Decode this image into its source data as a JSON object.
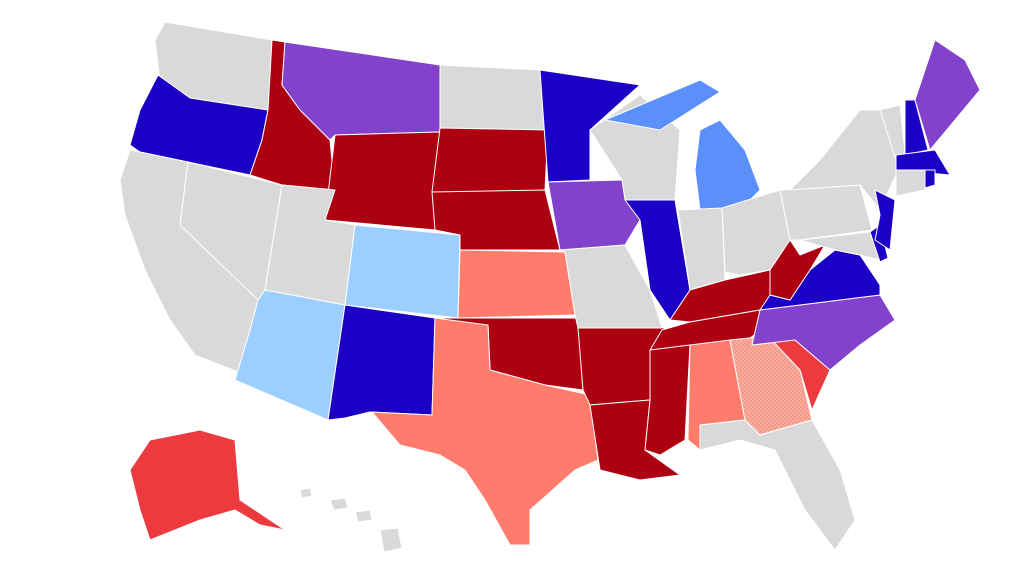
{
  "map": {
    "colors": {
      "gray": "#d9d9d9",
      "dark_blue": "#1c00c6",
      "medium_blue": "#5b8ff9",
      "light_blue": "#9ccfff",
      "purple": "#8342cc",
      "dark_red": "#ad0010",
      "red": "#ec3a3f",
      "salmon": "#ff7b6c",
      "salmon_dotted": "#f9a08f"
    },
    "states": {
      "WA": "gray",
      "OR": "dark_blue",
      "CA": "gray",
      "NV": "gray",
      "ID": "dark_red",
      "MT": "purple",
      "WY": "dark_red",
      "UT": "gray",
      "AZ": "light_blue",
      "CO": "light_blue",
      "NM": "dark_blue",
      "ND": "gray",
      "SD": "dark_red",
      "NE": "dark_red",
      "KS": "salmon",
      "OK": "dark_red",
      "TX": "salmon",
      "MN": "dark_blue",
      "IA": "purple",
      "MO": "gray",
      "AR": "dark_red",
      "LA": "dark_red",
      "WI": "gray",
      "IL": "dark_blue",
      "MI": "medium_blue",
      "IN": "gray",
      "OH": "gray",
      "KY": "dark_red",
      "TN": "dark_red",
      "MS": "dark_red",
      "AL": "salmon",
      "GA": "salmon_dotted",
      "FL": "gray",
      "SC": "red",
      "NC": "purple",
      "VA": "dark_blue",
      "WV": "dark_red",
      "PA": "gray",
      "NY": "gray",
      "MD": "gray",
      "DE": "dark_blue",
      "NJ": "dark_blue",
      "VT": "gray",
      "NH": "dark_blue",
      "ME": "purple",
      "MA": "dark_blue",
      "CT": "gray",
      "RI": "dark_blue",
      "AK": "red",
      "HI": "gray"
    }
  }
}
